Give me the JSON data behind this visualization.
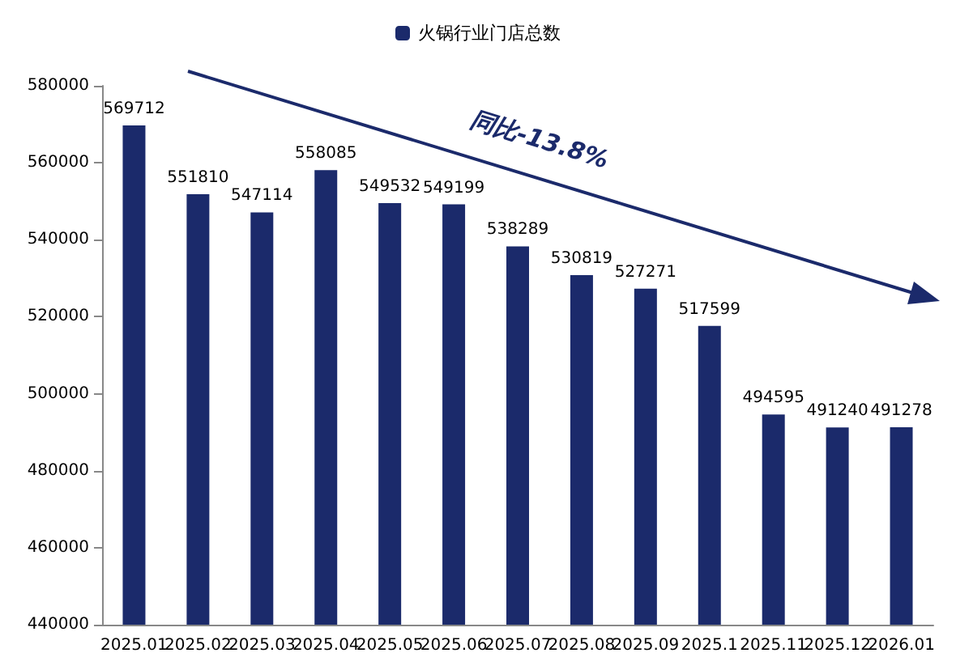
{
  "chart_data": {
    "type": "bar",
    "categories": [
      "2025.01",
      "2025.02",
      "2025.03",
      "2025.04",
      "2025.05",
      "2025.06",
      "2025.07",
      "2025.08",
      "2025.09",
      "2025.1",
      "2025.11",
      "2025.12",
      "2026.01"
    ],
    "series": [
      {
        "name": "火锅行业门店总数",
        "color": "#1b2a6b",
        "values": [
          569712,
          551810,
          547114,
          558085,
          549532,
          549199,
          538289,
          530819,
          527271,
          517599,
          494595,
          491240,
          491278
        ]
      }
    ],
    "ylim": [
      440000,
      580000
    ],
    "yticks": [
      440000,
      460000,
      480000,
      500000,
      520000,
      540000,
      560000,
      580000
    ],
    "grid": false,
    "legend": "top",
    "data_labels": true,
    "annotations": [
      "同比-13.8%"
    ]
  }
}
